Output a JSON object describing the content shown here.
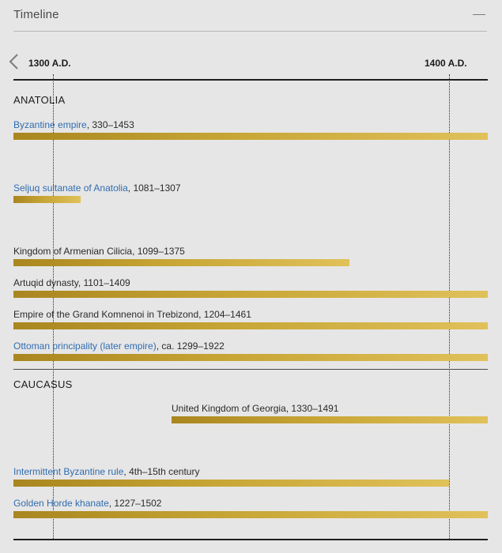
{
  "header": {
    "title": "Timeline",
    "collapse_icon": "minus-icon"
  },
  "scale": {
    "prev_icon": "chevron-left-icon",
    "start_label": "1300 A.D.",
    "end_label": "1400 A.D."
  },
  "colors": {
    "link": "#2f6db0",
    "bar_start": "#a9861f",
    "bar_end": "#e0c15a"
  },
  "sections": [
    {
      "title": "ANATOLIA",
      "rows": [
        {
          "link": "Byzantine empire",
          "text": ", 330–1453"
        },
        {
          "link": "Seljuq sultanate of Anatolia",
          "text": ", 1081–1307"
        },
        {
          "text": "Kingdom of Armenian Cilicia, 1099–1375"
        },
        {
          "text": "Artuqid dynasty, 1101–1409"
        },
        {
          "text": "Empire of the Grand Komnenoi in Trebizond, 1204–1461"
        },
        {
          "link": "Ottoman principality (later empire)",
          "text": ", ca. 1299–1922"
        }
      ]
    },
    {
      "title": "CAUCASUS",
      "rows": [
        {
          "text": "United Kingdom of Georgia, 1330–1491"
        },
        {
          "link": "Intermittent Byzantine rule",
          "text": ", 4th–15th century"
        },
        {
          "link": "Golden Horde khanate",
          "text": ", 1227–1502"
        }
      ]
    }
  ]
}
